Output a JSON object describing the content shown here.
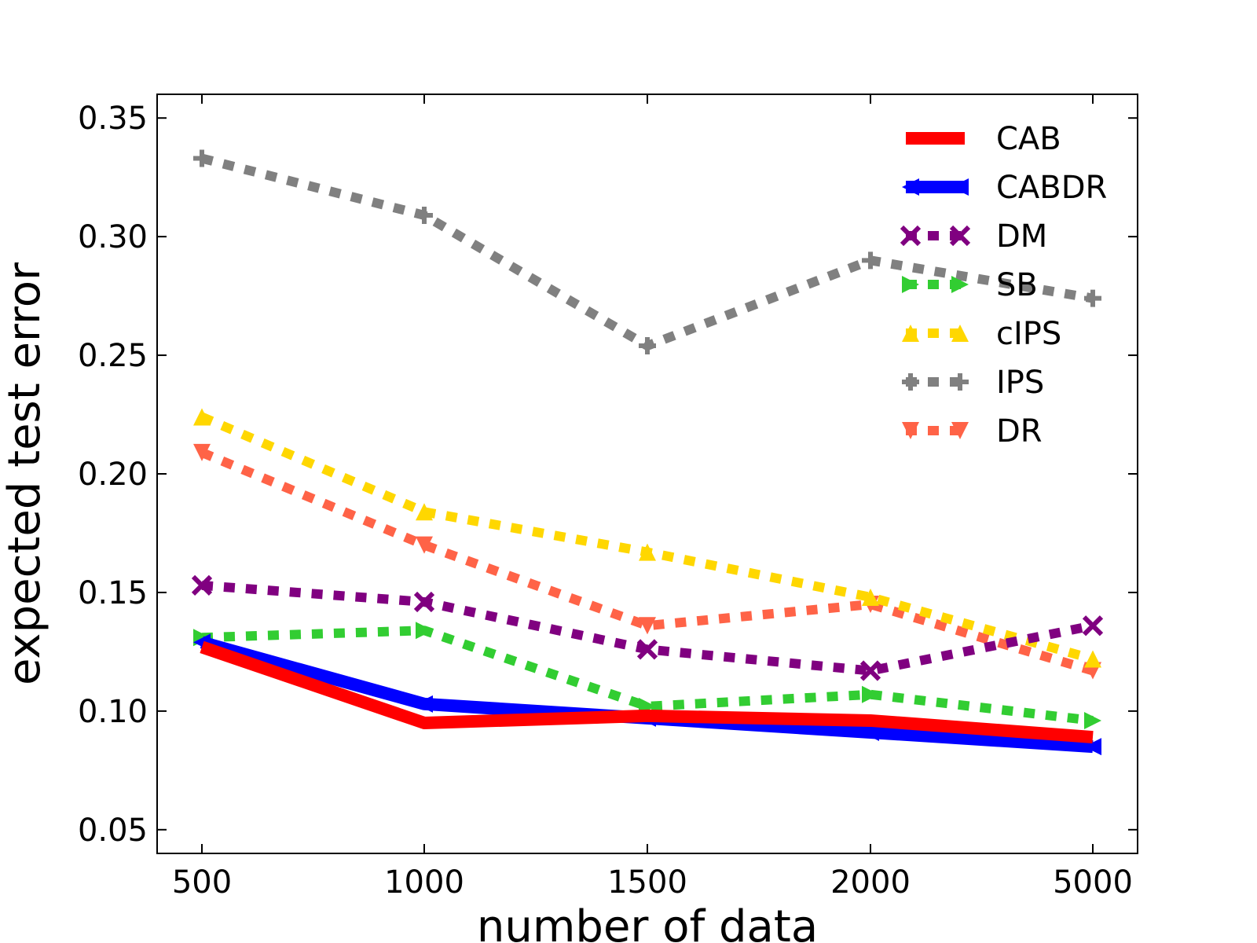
{
  "chart_data": {
    "type": "line",
    "title": "",
    "xlabel": "number of data",
    "ylabel": "expected test error",
    "categories": [
      "500",
      "1000",
      "1500",
      "2000",
      "5000"
    ],
    "ylim": [
      0.04,
      0.36
    ],
    "yticks": [
      "0.05",
      "0.10",
      "0.15",
      "0.20",
      "0.25",
      "0.30",
      "0.35"
    ],
    "ytick_values": [
      0.05,
      0.1,
      0.15,
      0.2,
      0.25,
      0.3,
      0.35
    ],
    "grid": false,
    "legend_position": "top-right",
    "series": [
      {
        "name": "CAB",
        "color": "#ff0000",
        "style": "solid",
        "marker": "none",
        "values": [
          0.127,
          0.095,
          0.098,
          0.096,
          0.089
        ]
      },
      {
        "name": "CABDR",
        "color": "#0000ff",
        "style": "solid",
        "marker": "triangle-left",
        "values": [
          0.129,
          0.103,
          0.097,
          0.091,
          0.085
        ]
      },
      {
        "name": "DM",
        "color": "#800080",
        "style": "dotted",
        "marker": "x",
        "values": [
          0.153,
          0.146,
          0.126,
          0.117,
          0.136
        ]
      },
      {
        "name": "SB",
        "color": "#32cd32",
        "style": "dotted",
        "marker": "triangle-right",
        "values": [
          0.131,
          0.134,
          0.102,
          0.107,
          0.096
        ]
      },
      {
        "name": "cIPS",
        "color": "#ffd700",
        "style": "dotted",
        "marker": "triangle-up",
        "values": [
          0.224,
          0.184,
          0.167,
          0.148,
          0.122
        ]
      },
      {
        "name": "IPS",
        "color": "#808080",
        "style": "dotted",
        "marker": "plus",
        "values": [
          0.333,
          0.309,
          0.254,
          0.29,
          0.274
        ]
      },
      {
        "name": "DR",
        "color": "#ff6347",
        "style": "dotted",
        "marker": "triangle-down",
        "values": [
          0.209,
          0.17,
          0.136,
          0.145,
          0.117
        ]
      }
    ]
  }
}
